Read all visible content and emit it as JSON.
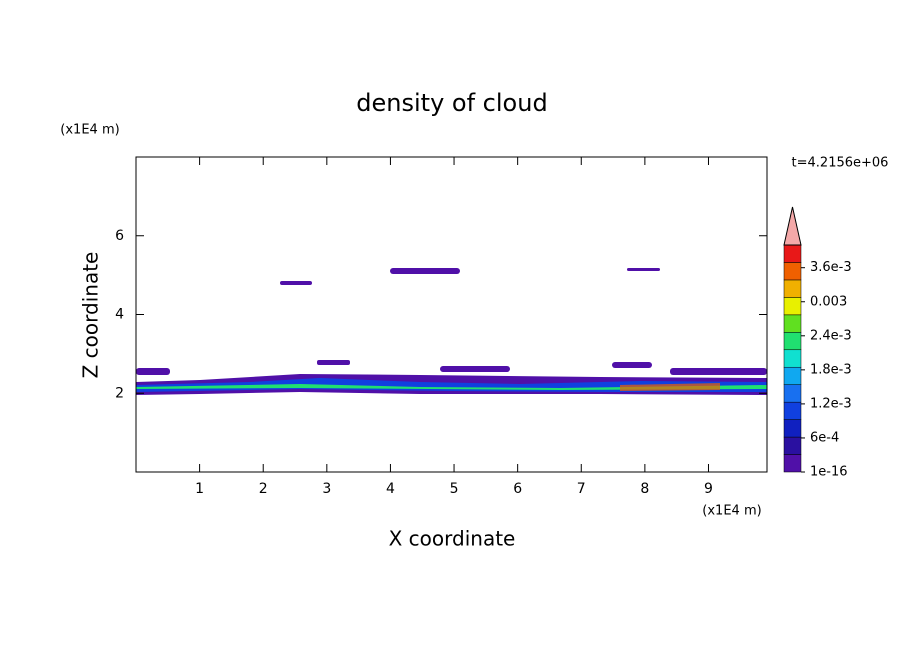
{
  "chart_data": {
    "type": "contour",
    "title": "density of cloud",
    "x_label": "X coordinate",
    "y_label": "Z coordinate",
    "x_unit": "(x1E4 m)",
    "y_unit": "(x1E4 m)",
    "time_label": "t=4.2156e+06",
    "xlim": [
      0,
      9.92
    ],
    "xticks": [
      1,
      2,
      3,
      4,
      5,
      6,
      7,
      8,
      9
    ],
    "ylim": [
      0,
      8
    ],
    "yticks": [
      2,
      4,
      6
    ],
    "colorbar": {
      "lim": [
        1e-16,
        0.004
      ],
      "ticks": [
        1e-16,
        {
          "value": 0.0006,
          "label": "6e-4"
        },
        {
          "value": 0.0012,
          "label": "1.2e-3"
        },
        {
          "value": 0.0018,
          "label": "1.8e-3"
        },
        {
          "value": 0.0024,
          "label": "2.4e-3"
        },
        0.003,
        {
          "value": 0.0036,
          "label": "3.6e-3"
        }
      ],
      "colors": [
        "#5010a8",
        "#2a10a0",
        "#1020c0",
        "#1040e0",
        "#1870f0",
        "#10a8f0",
        "#10e0d0",
        "#20e070",
        "#60e020",
        "#e8f000",
        "#f0b000",
        "#f06000",
        "#e81818"
      ],
      "over_color": "#f4a8a8"
    }
  }
}
